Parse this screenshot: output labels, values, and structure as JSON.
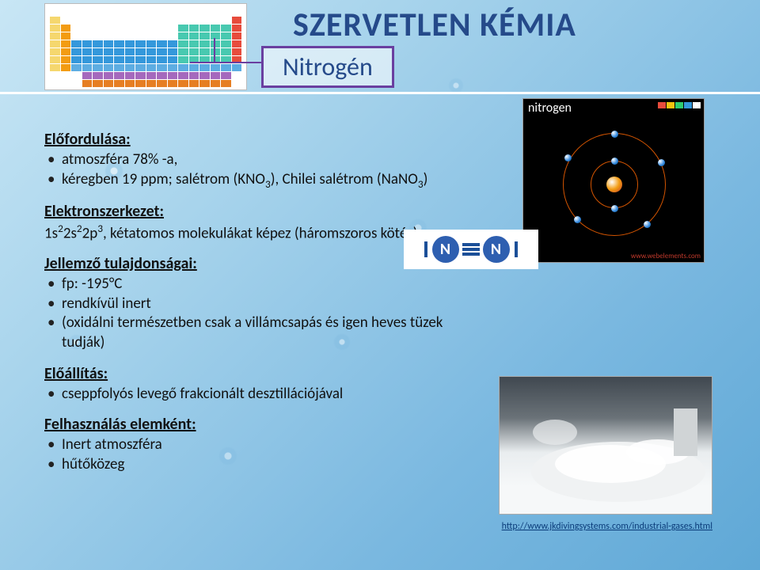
{
  "title": "SZERVETLEN KÉMIA",
  "subtitle": "Nitrogén",
  "sections": {
    "occurrence": {
      "head": "Előfordulása:",
      "items": [
        "atmoszféra 78% -a,",
        "kéregben 19 ppm; salétrom (KNO<sub>3</sub>), Chilei salétrom (NaNO<sub>3</sub>)"
      ]
    },
    "econf": {
      "head": "Elektronszerkezet:",
      "text": "1s<sup>2</sup>2s<sup>2</sup>2p<sup>3</sup>, kétatomos molekulákat képez (háromszoros kötés)"
    },
    "props": {
      "head": "Jellemző tulajdonságai:",
      "items": [
        "fp: -195°C",
        "rendkívül inert",
        "(oxidálni természetben csak a villámcsapás és igen heves tüzek tudják)"
      ]
    },
    "prep": {
      "head": "Előállítás:",
      "items": [
        "cseppfolyós levegő frakcionált desztillációjával"
      ]
    },
    "use": {
      "head": "Felhasználás elemként:",
      "items": [
        "Inert atmoszféra",
        "hűtőközeg"
      ]
    }
  },
  "atom": {
    "label": "nitrogen",
    "credit": "www.webelements.com",
    "palette": [
      "#e74c3c",
      "#f1c40f",
      "#2ecc71",
      "#3498db",
      "#ffffff"
    ]
  },
  "citation": "http://www.jkdivingsystems.com/industrial-gases.html",
  "colors": {
    "title": "#254a8a",
    "border": "#6a3fa0"
  }
}
